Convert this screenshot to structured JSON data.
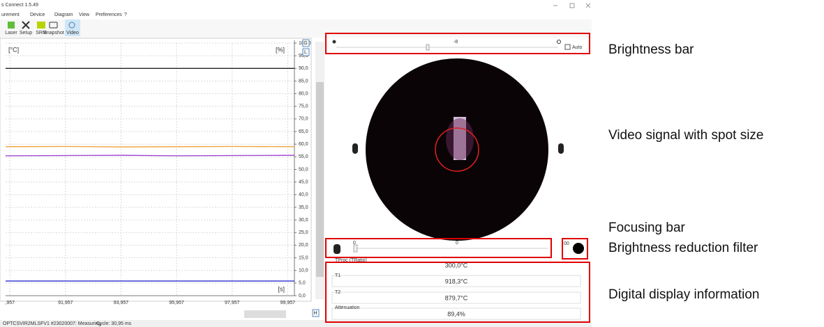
{
  "window": {
    "title": "s Connect 1.5.49",
    "menu": [
      "urement",
      "Device",
      "Diagram",
      "View",
      "Preferences",
      "?"
    ],
    "toolbar": [
      "Laser",
      "Setup",
      "SRM",
      "Snapshot",
      "Video"
    ]
  },
  "chart_data": {
    "type": "line",
    "y_label": "[°C]",
    "y2_label": "[%]",
    "x_label": "[s]",
    "x": [
      89.8,
      92,
      94,
      96,
      98,
      100.2
    ],
    "series": [
      {
        "color": "#222222",
        "values": [
          90,
          90,
          90,
          90,
          90,
          90
        ]
      },
      {
        "color": "#f0a030",
        "values": [
          59,
          59.1,
          58.9,
          59,
          59.1,
          59
        ]
      },
      {
        "color": "#9a3fd0",
        "values": [
          55.4,
          55.5,
          55.6,
          55.4,
          55.5,
          55.6
        ]
      },
      {
        "color": "#2a2ad0",
        "values": [
          5.8,
          5.8,
          5.8,
          5.8,
          5.8,
          5.8
        ]
      }
    ],
    "xlim": [
      89.8,
      100.2
    ],
    "xticks": [
      {
        "value": 89.957,
        "label": ",957"
      },
      {
        "value": 91.957,
        "label": "91,957"
      },
      {
        "value": 93.957,
        "label": "93,957"
      },
      {
        "value": 95.957,
        "label": "95,957"
      },
      {
        "value": 97.957,
        "label": "97,957"
      },
      {
        "value": 99.957,
        "label": "99,957"
      }
    ],
    "ylim": [
      0,
      100
    ],
    "yticks": [
      {
        "value": 100,
        "label": "100,0"
      },
      {
        "value": 95,
        "label": "95,0"
      },
      {
        "value": 90,
        "label": "90,0"
      },
      {
        "value": 85,
        "label": "85,0"
      },
      {
        "value": 80,
        "label": "80,0"
      },
      {
        "value": 75,
        "label": "75,0"
      },
      {
        "value": 70,
        "label": "70,0"
      },
      {
        "value": 65,
        "label": "65,0"
      },
      {
        "value": 60,
        "label": "60,0"
      },
      {
        "value": 55,
        "label": "55,0"
      },
      {
        "value": 50,
        "label": "50,0"
      },
      {
        "value": 45,
        "label": "45,0"
      },
      {
        "value": 40,
        "label": "40,0"
      },
      {
        "value": 35,
        "label": "35,0"
      },
      {
        "value": 30,
        "label": "30,0"
      },
      {
        "value": 25,
        "label": "25,0"
      },
      {
        "value": 20,
        "label": "20,0"
      },
      {
        "value": 15,
        "label": "15,0"
      },
      {
        "value": 10,
        "label": "10,0"
      },
      {
        "value": 5,
        "label": "5,0"
      },
      {
        "value": 0,
        "label": "0,0"
      }
    ],
    "grid": true
  },
  "side_buttons": [
    "G",
    "L",
    "H"
  ],
  "video": {
    "brightness_value": "-8",
    "auto": "Auto",
    "focus_left": "0",
    "focus_center": "0",
    "filter": "00"
  },
  "display": [
    {
      "label": "TProc (TRatio)",
      "value": "300,0°C",
      "color": "#5050e0"
    },
    {
      "label": "T1",
      "value": "918,3°C",
      "color": "#f0a030"
    },
    {
      "label": "T2",
      "value": "879,7°C",
      "color": "#9a3fd0"
    },
    {
      "label": "Attenuation",
      "value": "89,4%",
      "color": "#222222"
    }
  ],
  "status": [
    "OPTCSVIR2MLSFV1 #23020007: Measuring",
    "Cycle: 30,95 ms"
  ],
  "annotations": [
    "Brightness bar",
    "Video signal with spot size",
    "Focusing bar",
    "Brightness reduction filter",
    "Digital display information"
  ]
}
